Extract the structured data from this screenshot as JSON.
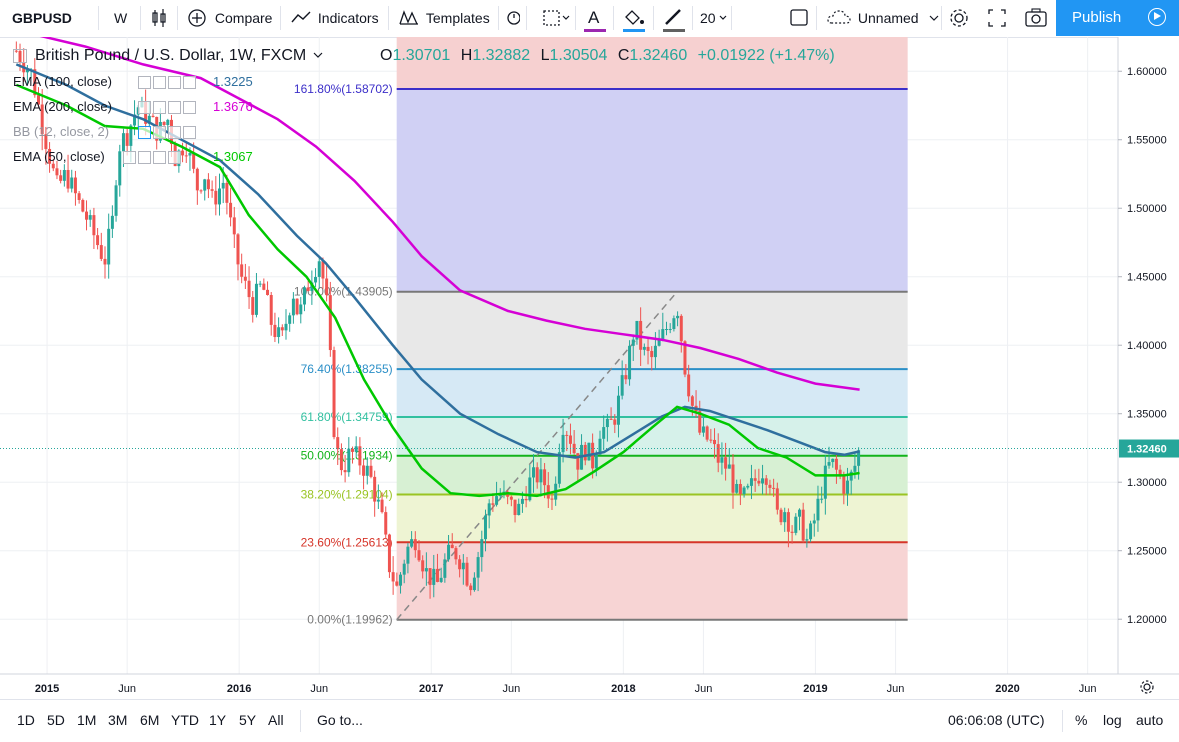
{
  "toolbar": {
    "symbol": "GBPUSD",
    "interval": "W",
    "compare": "Compare",
    "indicators": "Indicators",
    "templates": "Templates",
    "font_size": "20",
    "layout_name": "Unnamed",
    "publish": "Publish"
  },
  "legend": {
    "title": "British Pound / U.S. Dollar, 1W, FXCM",
    "open_label": "O",
    "open": "1.30701",
    "high_label": "H",
    "high": "1.32882",
    "low_label": "L",
    "low": "1.30504",
    "close_label": "C",
    "close": "1.32460",
    "change": "+0.01922 (+1.47%)",
    "indicators": [
      {
        "label": "EMA (100, close)",
        "value": "1.3225",
        "color": "#2f6f9e"
      },
      {
        "label": "EMA (200, close)",
        "value": "1.3676",
        "color": "#d500d5"
      },
      {
        "label": "BB (12, close, 2)",
        "value": "",
        "color": "#7b7e87"
      },
      {
        "label": "EMA (50, close)",
        "value": "1.3067",
        "color": "#00c800"
      }
    ]
  },
  "bottombar": {
    "ranges": [
      "1D",
      "5D",
      "1M",
      "3M",
      "6M",
      "YTD",
      "1Y",
      "5Y",
      "All"
    ],
    "goto": "Go to...",
    "clock": "06:06:08 (UTC)",
    "percent": "%",
    "log": "log",
    "auto": "auto"
  },
  "chart_data": {
    "type": "candlestick",
    "symbol": "GBPUSD",
    "interval": "1W",
    "ylim": [
      1.16,
      1.625
    ],
    "current_price": "1.32460",
    "current_price_value": 1.3246,
    "y_ticks": [
      "1.20000",
      "1.25000",
      "1.30000",
      "1.35000",
      "1.40000",
      "1.45000",
      "1.50000",
      "1.55000",
      "1.60000"
    ],
    "x_ticks": [
      {
        "label": "2015",
        "t": 2015.0
      },
      {
        "label": "Jun",
        "t": 2015.417
      },
      {
        "label": "2016",
        "t": 2016.0
      },
      {
        "label": "Jun",
        "t": 2016.417
      },
      {
        "label": "2017",
        "t": 2017.0
      },
      {
        "label": "Jun",
        "t": 2017.417
      },
      {
        "label": "2018",
        "t": 2018.0
      },
      {
        "label": "Jun",
        "t": 2018.417
      },
      {
        "label": "2019",
        "t": 2019.0
      },
      {
        "label": "Jun",
        "t": 2019.417
      },
      {
        "label": "2020",
        "t": 2020.0
      },
      {
        "label": "Jun",
        "t": 2020.417
      }
    ],
    "price_path": [
      [
        2014.84,
        1.615
      ],
      [
        2014.92,
        1.598
      ],
      [
        2014.97,
        1.565
      ],
      [
        2015.05,
        1.515
      ],
      [
        2015.1,
        1.525
      ],
      [
        2015.16,
        1.505
      ],
      [
        2015.2,
        1.495
      ],
      [
        2015.26,
        1.475
      ],
      [
        2015.3,
        1.462
      ],
      [
        2015.34,
        1.49
      ],
      [
        2015.37,
        1.545
      ],
      [
        2015.42,
        1.555
      ],
      [
        2015.47,
        1.575
      ],
      [
        2015.53,
        1.565
      ],
      [
        2015.58,
        1.555
      ],
      [
        2015.63,
        1.565
      ],
      [
        2015.67,
        1.535
      ],
      [
        2015.72,
        1.55
      ],
      [
        2015.78,
        1.515
      ],
      [
        2015.82,
        1.525
      ],
      [
        2015.86,
        1.505
      ],
      [
        2015.92,
        1.52
      ],
      [
        2015.97,
        1.475
      ],
      [
        2016.01,
        1.45
      ],
      [
        2016.07,
        1.43
      ],
      [
        2016.12,
        1.445
      ],
      [
        2016.17,
        1.415
      ],
      [
        2016.22,
        1.402
      ],
      [
        2016.28,
        1.44
      ],
      [
        2016.31,
        1.42
      ],
      [
        2016.37,
        1.45
      ],
      [
        2016.42,
        1.465
      ],
      [
        2016.46,
        1.425
      ],
      [
        2016.5,
        1.325
      ],
      [
        2016.54,
        1.31
      ],
      [
        2016.58,
        1.322
      ],
      [
        2016.63,
        1.315
      ],
      [
        2016.68,
        1.305
      ],
      [
        2016.74,
        1.275
      ],
      [
        2016.78,
        1.24
      ],
      [
        2016.82,
        1.222
      ],
      [
        2016.87,
        1.25
      ],
      [
        2016.92,
        1.26
      ],
      [
        2016.97,
        1.235
      ],
      [
        2017.03,
        1.225
      ],
      [
        2017.08,
        1.245
      ],
      [
        2017.12,
        1.25
      ],
      [
        2017.17,
        1.24
      ],
      [
        2017.2,
        1.225
      ],
      [
        2017.25,
        1.25
      ],
      [
        2017.3,
        1.285
      ],
      [
        2017.35,
        1.292
      ],
      [
        2017.4,
        1.285
      ],
      [
        2017.45,
        1.278
      ],
      [
        2017.5,
        1.298
      ],
      [
        2017.55,
        1.305
      ],
      [
        2017.6,
        1.298
      ],
      [
        2017.63,
        1.285
      ],
      [
        2017.68,
        1.345
      ],
      [
        2017.72,
        1.335
      ],
      [
        2017.76,
        1.315
      ],
      [
        2017.8,
        1.325
      ],
      [
        2017.84,
        1.315
      ],
      [
        2017.88,
        1.34
      ],
      [
        2017.92,
        1.338
      ],
      [
        2017.96,
        1.35
      ],
      [
        2018.02,
        1.385
      ],
      [
        2018.06,
        1.415
      ],
      [
        2018.1,
        1.395
      ],
      [
        2018.15,
        1.39
      ],
      [
        2018.2,
        1.405
      ],
      [
        2018.25,
        1.42
      ],
      [
        2018.28,
        1.43
      ],
      [
        2018.32,
        1.385
      ],
      [
        2018.36,
        1.355
      ],
      [
        2018.4,
        1.335
      ],
      [
        2018.45,
        1.33
      ],
      [
        2018.5,
        1.315
      ],
      [
        2018.55,
        1.31
      ],
      [
        2018.6,
        1.285
      ],
      [
        2018.64,
        1.29
      ],
      [
        2018.68,
        1.3
      ],
      [
        2018.72,
        1.31
      ],
      [
        2018.76,
        1.305
      ],
      [
        2018.8,
        1.275
      ],
      [
        2018.84,
        1.28
      ],
      [
        2018.88,
        1.265
      ],
      [
        2018.92,
        1.272
      ],
      [
        2018.96,
        1.255
      ],
      [
        2019.0,
        1.275
      ],
      [
        2019.04,
        1.3
      ],
      [
        2019.08,
        1.315
      ],
      [
        2019.12,
        1.305
      ],
      [
        2019.16,
        1.295
      ],
      [
        2019.2,
        1.309
      ],
      [
        2019.23,
        1.325
      ]
    ],
    "series": [
      {
        "name": "EMA (100, close)",
        "color": "#2f6f9e",
        "points": [
          [
            2014.84,
            1.605
          ],
          [
            2015.1,
            1.59
          ],
          [
            2015.3,
            1.575
          ],
          [
            2015.5,
            1.565
          ],
          [
            2015.7,
            1.55
          ],
          [
            2015.9,
            1.535
          ],
          [
            2016.1,
            1.51
          ],
          [
            2016.3,
            1.48
          ],
          [
            2016.45,
            1.46
          ],
          [
            2016.6,
            1.435
          ],
          [
            2016.8,
            1.4
          ],
          [
            2016.95,
            1.375
          ],
          [
            2017.15,
            1.35
          ],
          [
            2017.35,
            1.335
          ],
          [
            2017.55,
            1.322
          ],
          [
            2017.75,
            1.318
          ],
          [
            2017.9,
            1.322
          ],
          [
            2018.05,
            1.335
          ],
          [
            2018.2,
            1.348
          ],
          [
            2018.32,
            1.355
          ],
          [
            2018.45,
            1.352
          ],
          [
            2018.6,
            1.345
          ],
          [
            2018.75,
            1.338
          ],
          [
            2018.9,
            1.33
          ],
          [
            2019.05,
            1.322
          ],
          [
            2019.15,
            1.32
          ],
          [
            2019.23,
            1.3225
          ]
        ]
      },
      {
        "name": "EMA (200, close)",
        "color": "#d500d5",
        "points": [
          [
            2014.84,
            1.63
          ],
          [
            2015.2,
            1.618
          ],
          [
            2015.5,
            1.605
          ],
          [
            2015.8,
            1.595
          ],
          [
            2016.0,
            1.58
          ],
          [
            2016.2,
            1.565
          ],
          [
            2016.4,
            1.545
          ],
          [
            2016.6,
            1.52
          ],
          [
            2016.8,
            1.49
          ],
          [
            2016.95,
            1.465
          ],
          [
            2017.15,
            1.44
          ],
          [
            2017.4,
            1.425
          ],
          [
            2017.6,
            1.418
          ],
          [
            2017.8,
            1.412
          ],
          [
            2018.0,
            1.408
          ],
          [
            2018.2,
            1.404
          ],
          [
            2018.4,
            1.398
          ],
          [
            2018.6,
            1.39
          ],
          [
            2018.8,
            1.38
          ],
          [
            2019.0,
            1.372
          ],
          [
            2019.23,
            1.3676
          ]
        ]
      },
      {
        "name": "EMA (50, close)",
        "color": "#00c800",
        "points": [
          [
            2014.84,
            1.59
          ],
          [
            2015.1,
            1.575
          ],
          [
            2015.3,
            1.56
          ],
          [
            2015.5,
            1.558
          ],
          [
            2015.7,
            1.545
          ],
          [
            2015.9,
            1.53
          ],
          [
            2016.05,
            1.495
          ],
          [
            2016.2,
            1.47
          ],
          [
            2016.35,
            1.45
          ],
          [
            2016.5,
            1.42
          ],
          [
            2016.65,
            1.375
          ],
          [
            2016.8,
            1.34
          ],
          [
            2016.95,
            1.31
          ],
          [
            2017.1,
            1.292
          ],
          [
            2017.25,
            1.29
          ],
          [
            2017.4,
            1.292
          ],
          [
            2017.55,
            1.29
          ],
          [
            2017.7,
            1.295
          ],
          [
            2017.85,
            1.308
          ],
          [
            2018.0,
            1.322
          ],
          [
            2018.15,
            1.34
          ],
          [
            2018.28,
            1.355
          ],
          [
            2018.4,
            1.35
          ],
          [
            2018.55,
            1.342
          ],
          [
            2018.7,
            1.325
          ],
          [
            2018.85,
            1.318
          ],
          [
            2019.0,
            1.305
          ],
          [
            2019.15,
            1.305
          ],
          [
            2019.23,
            1.3067
          ]
        ]
      }
    ],
    "fibonacci": {
      "start_t": 2016.82,
      "end_t": 2019.48,
      "levels": [
        {
          "label": "161.80%(1.58702)",
          "value": 1.58702,
          "line": "#3c2fc9",
          "fill": "#d0d0f4"
        },
        {
          "label": "100.00%(1.43905)",
          "value": 1.43905,
          "line": "#787878",
          "fill": "#e8e8e8"
        },
        {
          "label": "76.40%(1.38255)",
          "value": 1.38255,
          "line": "#2b8fc7",
          "fill": "#d6e9f5"
        },
        {
          "label": "61.80%(1.34759)",
          "value": 1.34759,
          "line": "#32c0a0",
          "fill": "#d6f1ea"
        },
        {
          "label": "50.00%(1.31934)",
          "value": 1.31934,
          "line": "#12b31a",
          "fill": "#d7f0d3"
        },
        {
          "label": "38.20%(1.29104)",
          "value": 1.29104,
          "line": "#9ac423",
          "fill": "#eef4d3"
        },
        {
          "label": "23.60%(1.25613)",
          "value": 1.25613,
          "line": "#d63529",
          "fill": "#f7d4d4"
        },
        {
          "label": "0.00%(1.19962)",
          "value": 1.19962,
          "line": "#787878",
          "fill": ""
        }
      ]
    },
    "trend_line": [
      [
        2016.82,
        1.19962
      ],
      [
        2018.28,
        1.43905
      ]
    ]
  }
}
